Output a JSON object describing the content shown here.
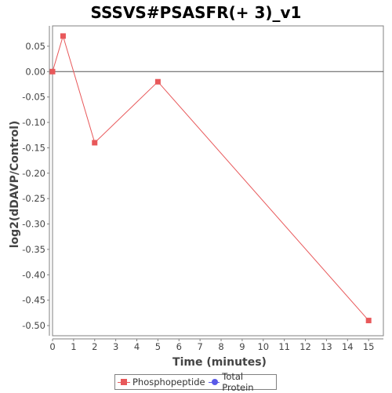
{
  "chart_data": {
    "type": "line",
    "title": "SSSVS#PSASFR(+ 3)_v1",
    "xlabel": "Time (minutes)",
    "ylabel": "log2(dDAVP/Control)",
    "xlim": [
      0,
      15.7
    ],
    "ylim": [
      -0.52,
      0.09
    ],
    "x_ticks": [
      0,
      1,
      2,
      3,
      4,
      5,
      6,
      7,
      8,
      9,
      10,
      11,
      12,
      13,
      14,
      15
    ],
    "y_ticks": [
      0.05,
      0.0,
      -0.05,
      -0.1,
      -0.15,
      -0.2,
      -0.25,
      -0.3,
      -0.35,
      -0.4,
      -0.45,
      -0.5
    ],
    "y_tick_labels": [
      "0.05",
      "0.00",
      "-0.05",
      "-0.10",
      "-0.15",
      "-0.20",
      "-0.25",
      "-0.30",
      "-0.35",
      "-0.40",
      "-0.45",
      "-0.50"
    ],
    "zero_line": true,
    "grid": false,
    "legend_position": "bottom-center",
    "series": [
      {
        "name": "Phosphopeptide",
        "marker": "square",
        "color": "#e8585a",
        "x": [
          0,
          0.5,
          2,
          5,
          15
        ],
        "y": [
          0.0,
          0.07,
          -0.14,
          -0.02,
          -0.49
        ]
      },
      {
        "name": "Total Protein",
        "marker": "circle",
        "color": "#5a5ae8",
        "x": [],
        "y": []
      }
    ]
  }
}
